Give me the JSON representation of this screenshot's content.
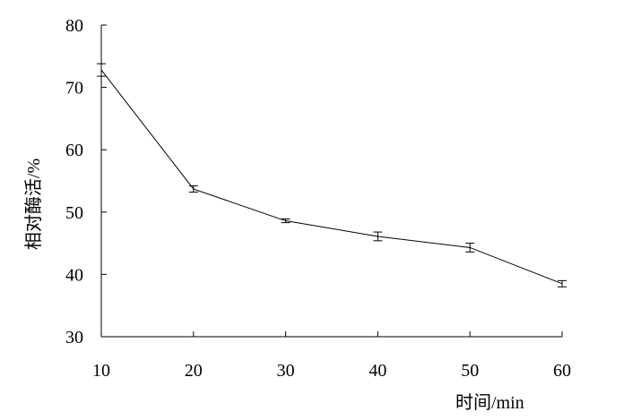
{
  "chart_data": {
    "type": "line",
    "xlabel": "时间/min",
    "ylabel": "相对酶活/%",
    "x": [
      10,
      20,
      30,
      40,
      50,
      60
    ],
    "xlim": [
      10,
      60
    ],
    "ylim": [
      30,
      80
    ],
    "xticks": [
      "10",
      "20",
      "30",
      "40",
      "50",
      "60"
    ],
    "yticks": [
      "30",
      "40",
      "50",
      "60",
      "70",
      "80"
    ],
    "series": [
      {
        "values": [
          72.8,
          53.7,
          48.6,
          46.1,
          44.3,
          38.5
        ],
        "error": [
          1.0,
          0.5,
          0.3,
          0.7,
          0.7,
          0.5
        ],
        "color": "#000000"
      }
    ],
    "grid": false,
    "legend": "none"
  }
}
